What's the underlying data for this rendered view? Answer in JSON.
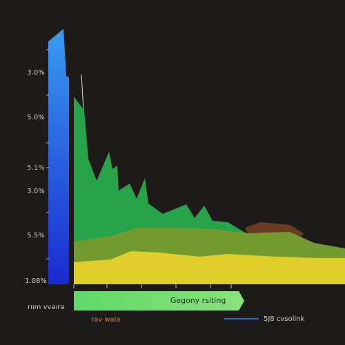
{
  "axis": {
    "labels": [
      "3.0%",
      "5.0%",
      "5.1%",
      "3.0%",
      "5.5%",
      "1.08%"
    ]
  },
  "banner": {
    "label": "Gegony rsiting"
  },
  "footer": {
    "left": "rıım vvəırə",
    "caption": "rav wala",
    "legend": "5J8 cvsolink"
  }
}
